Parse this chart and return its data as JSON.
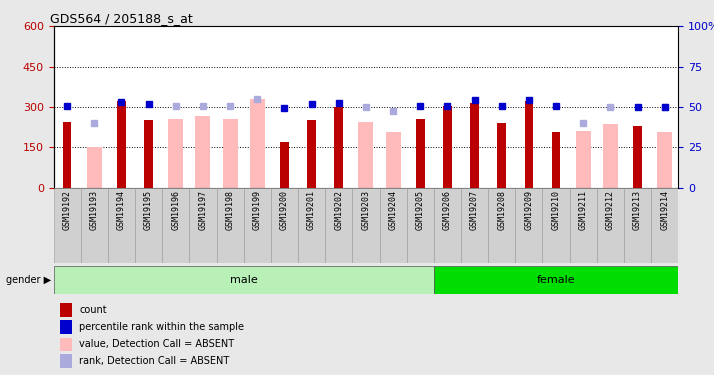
{
  "title": "GDS564 / 205188_s_at",
  "samples": [
    "GSM19192",
    "GSM19193",
    "GSM19194",
    "GSM19195",
    "GSM19196",
    "GSM19197",
    "GSM19198",
    "GSM19199",
    "GSM19200",
    "GSM19201",
    "GSM19202",
    "GSM19203",
    "GSM19204",
    "GSM19205",
    "GSM19206",
    "GSM19207",
    "GSM19208",
    "GSM19209",
    "GSM19210",
    "GSM19211",
    "GSM19212",
    "GSM19213",
    "GSM19214"
  ],
  "count_values": [
    245,
    null,
    320,
    250,
    null,
    null,
    null,
    null,
    168,
    250,
    300,
    null,
    null,
    255,
    305,
    315,
    240,
    320,
    205,
    null,
    null,
    230,
    null
  ],
  "absent_values": [
    null,
    150,
    null,
    null,
    255,
    265,
    255,
    330,
    null,
    null,
    null,
    245,
    205,
    null,
    null,
    null,
    null,
    null,
    null,
    210,
    235,
    null,
    205
  ],
  "rank_present": [
    305,
    null,
    320,
    310,
    null,
    null,
    null,
    null,
    295,
    310,
    315,
    null,
    null,
    305,
    305,
    325,
    305,
    325,
    305,
    null,
    null,
    300,
    300
  ],
  "rank_absent": [
    null,
    240,
    null,
    null,
    305,
    305,
    305,
    330,
    null,
    null,
    null,
    300,
    285,
    null,
    null,
    null,
    null,
    null,
    null,
    240,
    300,
    null,
    300
  ],
  "ylim_left": [
    0,
    600
  ],
  "ylim_right": [
    0,
    100
  ],
  "yticks_left": [
    0,
    150,
    300,
    450,
    600
  ],
  "yticks_right": [
    0,
    25,
    50,
    75,
    100
  ],
  "n_male": 14,
  "n_female": 9,
  "bg_color": "#e8e8e8",
  "plot_bg": "#ffffff",
  "male_color_light": "#b8f0b8",
  "female_color_dark": "#00dd00",
  "xtick_bg": "#d0d0d0",
  "count_color": "#bb0000",
  "absent_color": "#ffbbbb",
  "rank_present_color": "#0000cc",
  "rank_absent_color": "#aaaadd"
}
